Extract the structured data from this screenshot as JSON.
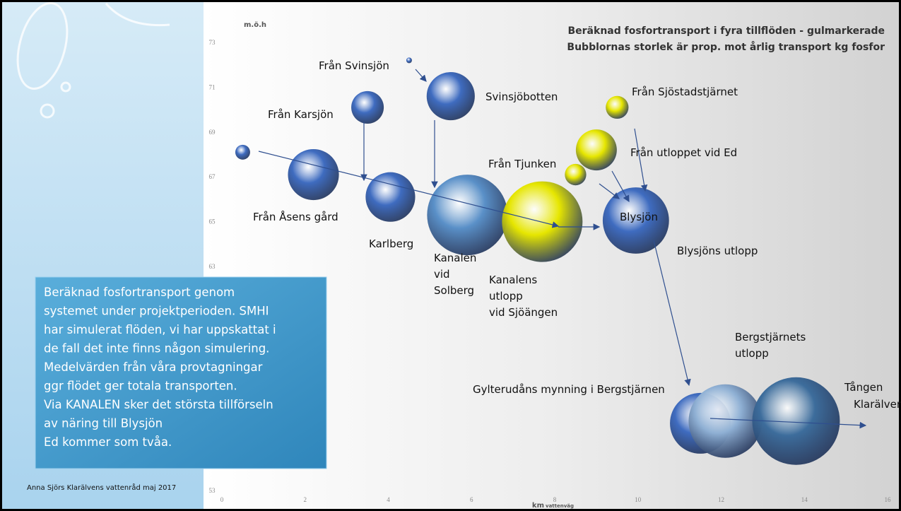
{
  "chart_data": {
    "type": "bubble",
    "title": "Beräknad fosfortransport i fyra tillflöden - gulmarkerade",
    "subtitle": "Bubblornas storlek är prop. mot årlig transport kg fosfor",
    "ylabel": "m.ö.h",
    "xlabel": "km",
    "xlabel_unit": "vattenväg",
    "xlim": [
      0,
      16
    ],
    "xticks": [
      0,
      2,
      4,
      6,
      8,
      10,
      12,
      14,
      16
    ],
    "ylim": [
      53,
      73
    ],
    "yticks": [
      53,
      63,
      65,
      67,
      69,
      71,
      73
    ],
    "x": [
      0.5,
      2.2,
      3.5,
      4.05,
      5.5,
      4.5,
      5.9,
      7.7,
      8.5,
      9.0,
      9.5,
      9.95,
      11.5,
      12.1,
      13.8
    ],
    "y": [
      68.1,
      67.1,
      70.1,
      66.1,
      70.6,
      72.2,
      65.3,
      65.0,
      67.1,
      68.2,
      70.1,
      65.05,
      56.0,
      56.1,
      56.1
    ],
    "sizes": [
      1.1,
      13,
      5.3,
      12.3,
      11.6,
      0.16,
      32.5,
      32.5,
      2.3,
      8.4,
      2.6,
      22,
      18.5,
      27,
      38.4
    ],
    "colors": [
      "#3f6cc0",
      "#3f6cc0",
      "#3f6cc0",
      "#3f6cc0",
      "#3f6cc0",
      "#3f6cc0",
      "#5a90c8",
      "#e6e600",
      "#e6e600",
      "#e6e600",
      "#e6e600",
      "#3f6cc0",
      "#3f6cc0",
      "#8fb0d4",
      "#3d6d9c"
    ],
    "labels": [
      null,
      [
        "Från Åsens gård"
      ],
      [
        "Från Karsjön"
      ],
      [
        "Karlberg"
      ],
      [
        "Svinsjöbotten"
      ],
      [
        "Från Svinsjön"
      ],
      [
        "Kanalen",
        "vid",
        "Solberg"
      ],
      [
        "Kanalens",
        "utlopp",
        "vid Sjöängen"
      ],
      [
        "Från Tjunken"
      ],
      [
        "Från utloppet vid Ed"
      ],
      [
        "Från Sjöstadstjärnet"
      ],
      [
        "Blysjön"
      ],
      [
        "Gylterudåns mynning i Bergstjärnen"
      ],
      [
        "Bergstjärnets",
        "utlopp"
      ],
      [
        "Tången"
      ]
    ],
    "annotations": [
      "Blysjöns utlopp",
      "Klarälven"
    ]
  },
  "textbox": [
    "Beräknad fosfortransport genom",
    "systemet under projektperioden. SMHI",
    "har simulerat flöden, vi har uppskattat i",
    "de fall det inte finns någon simulering.",
    "Medelvärden från våra provtagningar",
    "ggr flödet ger totala transporten.",
    "Via KANALEN sker det största tillförseln",
    "av näring till Blysjön",
    "Ed kommer som tvåa."
  ],
  "footer": "Anna Sjörs Klarälvens vattenråd maj 2017"
}
